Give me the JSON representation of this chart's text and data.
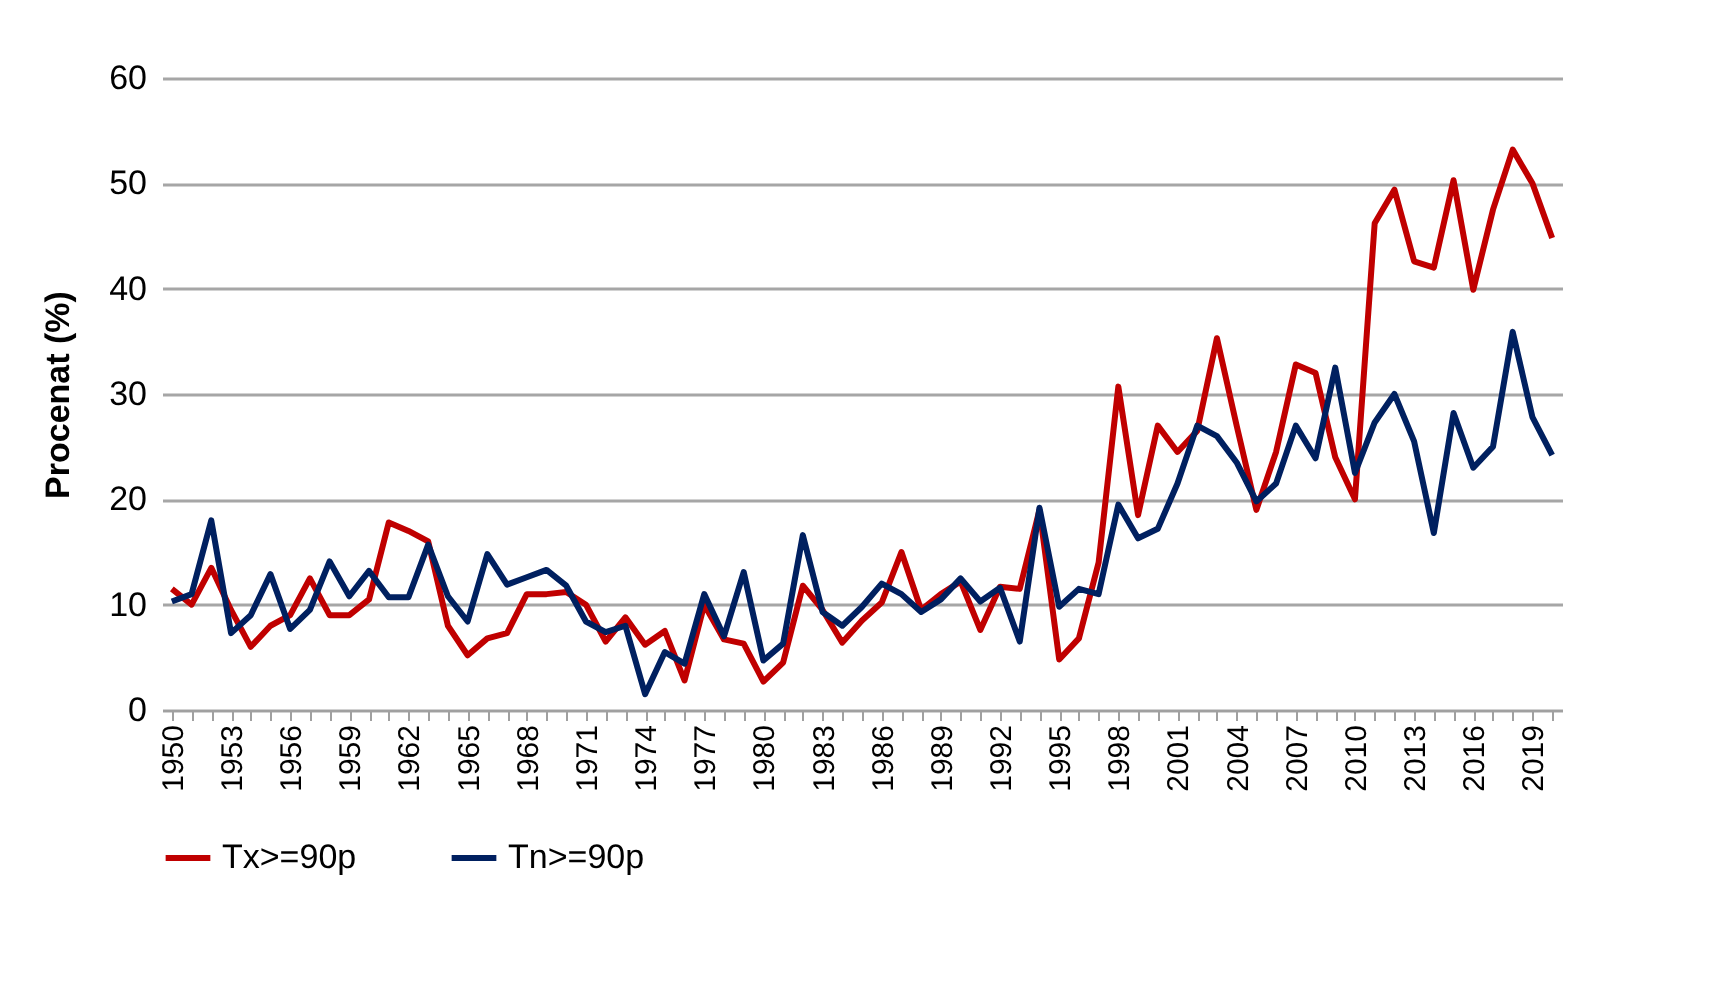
{
  "chart_data": {
    "type": "line",
    "ylabel": "Procenat (%)",
    "categories": [
      "1950",
      null,
      null,
      "1953",
      null,
      null,
      "1956",
      null,
      null,
      "1959",
      null,
      null,
      "1962",
      null,
      null,
      "1965",
      null,
      null,
      "1968",
      null,
      null,
      "1971",
      null,
      null,
      "1974",
      null,
      null,
      "1977",
      null,
      null,
      "1980",
      null,
      null,
      "1983",
      null,
      null,
      "1986",
      null,
      null,
      "1989",
      null,
      null,
      "1992",
      null,
      null,
      "1995",
      null,
      null,
      "1998",
      null,
      null,
      "2001",
      null,
      null,
      "2004",
      null,
      null,
      "2007",
      null,
      null,
      "2010",
      null,
      null,
      "2013",
      null,
      null,
      "2016",
      null,
      null,
      "2019",
      null
    ],
    "series": [
      {
        "name": "Tx>=90p",
        "color": "#c00000",
        "values": [
          11.5,
          10,
          13.5,
          9.5,
          6,
          8,
          9,
          12.5,
          9,
          9,
          10.5,
          17.8,
          17,
          16,
          8,
          5.2,
          6.8,
          7.3,
          11,
          11,
          11.2,
          10,
          6.5,
          8.8,
          6.2,
          7.5,
          2.8,
          10,
          6.7,
          6.3,
          2.7,
          4.5,
          11.8,
          9.5,
          6.4,
          8.5,
          10.2,
          15,
          9.5,
          11,
          12.2,
          7.6,
          11.7,
          11.5,
          19,
          4.8,
          6.8,
          14,
          30.7,
          18.5,
          27,
          24.5,
          26.5,
          35.3,
          27,
          19,
          24.5,
          32.8,
          32,
          24,
          20,
          46.2,
          49.4,
          42.6,
          42,
          50.3,
          39.9,
          47.5,
          53.2,
          50,
          44.8
        ]
      },
      {
        "name": "Tn>=90p",
        "color": "#002060",
        "values": [
          10.3,
          11,
          18,
          7.3,
          9,
          12.9,
          7.7,
          9.5,
          14.1,
          10.8,
          13.2,
          10.7,
          10.7,
          15.7,
          10.8,
          8.4,
          14.8,
          11.9,
          12.6,
          13.3,
          11.8,
          8.4,
          7.4,
          8,
          1.5,
          5.5,
          4.4,
          11,
          7,
          13.1,
          4.7,
          6.3,
          16.6,
          9.3,
          8,
          9.8,
          12,
          11,
          9.3,
          10.5,
          12.5,
          10.3,
          11.6,
          6.5,
          19.2,
          9.8,
          11.5,
          11,
          19.5,
          16.3,
          17.2,
          21.5,
          27,
          26,
          23.5,
          19.8,
          21.5,
          27,
          23.9,
          32.5,
          22.5,
          27.3,
          30,
          25.5,
          16.8,
          28.2,
          23,
          25,
          35.9,
          27.8,
          24.2
        ]
      }
    ],
    "ylim": [
      0,
      60
    ],
    "yticks": [
      0,
      10,
      20,
      30,
      40,
      50,
      60
    ],
    "grid": "y",
    "legend": "bottom",
    "marker": "none",
    "line_style": "solid"
  }
}
